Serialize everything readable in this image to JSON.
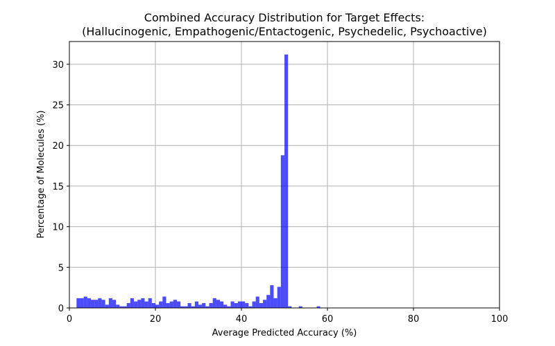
{
  "chart_data": {
    "type": "bar",
    "title": "Combined Accuracy Distribution for Target Effects:",
    "subtitle": "(Hallucinogenic, Empathogenic/Entactogenic, Psychedelic, Psychoactive)",
    "xlabel": "Average Predicted Accuracy (%)",
    "ylabel": "Percentage of Molecules (%)",
    "xlim": [
      0,
      100
    ],
    "ylim": [
      0,
      32.8
    ],
    "xticks": [
      0,
      20,
      40,
      60,
      80,
      100
    ],
    "yticks": [
      0,
      5,
      10,
      15,
      20,
      25,
      30
    ],
    "grid": true,
    "bar_color": "#0000ff",
    "bar_opacity": 0.7,
    "bin_width": 0.8333,
    "x": [
      2.08,
      2.92,
      3.75,
      4.58,
      5.42,
      6.25,
      7.08,
      7.92,
      8.75,
      9.58,
      10.42,
      11.25,
      12.08,
      12.92,
      13.75,
      14.58,
      15.42,
      16.25,
      17.08,
      17.92,
      18.75,
      19.58,
      20.42,
      21.25,
      22.08,
      22.92,
      23.75,
      24.58,
      25.42,
      26.25,
      27.08,
      27.92,
      28.75,
      29.58,
      30.42,
      31.25,
      32.08,
      32.92,
      33.75,
      34.58,
      35.42,
      36.25,
      37.08,
      37.92,
      38.75,
      39.58,
      40.42,
      41.25,
      42.08,
      42.92,
      43.75,
      44.58,
      45.42,
      46.25,
      47.08,
      47.92,
      48.75,
      49.58,
      50.42,
      51.25,
      52.08,
      52.92,
      53.75,
      54.58,
      55.42,
      56.25,
      57.08,
      57.92
    ],
    "values": [
      1.2,
      1.2,
      1.4,
      1.2,
      1.0,
      1.0,
      1.2,
      1.0,
      0.4,
      1.2,
      1.0,
      0.4,
      0.2,
      0.2,
      0.6,
      1.2,
      0.8,
      1.0,
      1.2,
      0.8,
      1.2,
      0.6,
      0.4,
      0.8,
      1.4,
      0.6,
      0.8,
      1.0,
      0.8,
      0.2,
      0.2,
      0.6,
      0.2,
      0.8,
      0.4,
      0.6,
      0.2,
      0.6,
      1.2,
      1.0,
      0.8,
      0.4,
      0.2,
      0.8,
      0.6,
      0.8,
      0.8,
      0.6,
      0.2,
      0.8,
      1.4,
      0.6,
      1.0,
      1.6,
      2.8,
      1.2,
      2.6,
      18.8,
      31.2,
      0.2,
      0.0,
      0.0,
      0.2,
      0.0,
      0.0,
      0.0,
      0.0,
      0.2
    ]
  }
}
